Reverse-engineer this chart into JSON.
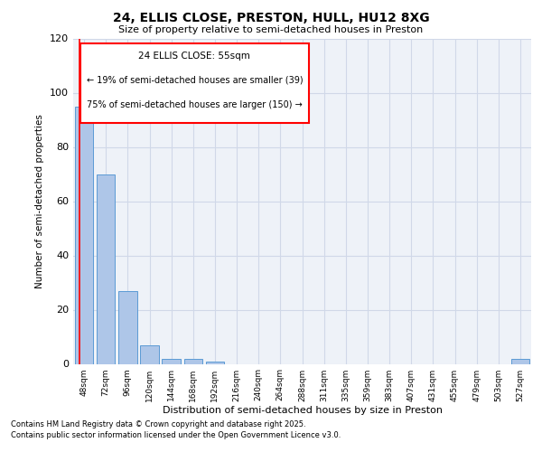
{
  "title1": "24, ELLIS CLOSE, PRESTON, HULL, HU12 8XG",
  "title2": "Size of property relative to semi-detached houses in Preston",
  "xlabel": "Distribution of semi-detached houses by size in Preston",
  "ylabel": "Number of semi-detached properties",
  "categories": [
    "48sqm",
    "72sqm",
    "96sqm",
    "120sqm",
    "144sqm",
    "168sqm",
    "192sqm",
    "216sqm",
    "240sqm",
    "264sqm",
    "288sqm",
    "311sqm",
    "335sqm",
    "359sqm",
    "383sqm",
    "407sqm",
    "431sqm",
    "455sqm",
    "479sqm",
    "503sqm",
    "527sqm"
  ],
  "values": [
    95,
    70,
    27,
    7,
    2,
    2,
    1,
    0,
    0,
    0,
    0,
    0,
    0,
    0,
    0,
    0,
    0,
    0,
    0,
    0,
    2
  ],
  "bar_color": "#aec6e8",
  "bar_edge_color": "#5b9bd5",
  "ylim": [
    0,
    120
  ],
  "yticks": [
    0,
    20,
    40,
    60,
    80,
    100,
    120
  ],
  "annotation_label": "24 ELLIS CLOSE: 55sqm",
  "annotation_smaller": "← 19% of semi-detached houses are smaller (39)",
  "annotation_larger": "75% of semi-detached houses are larger (150) →",
  "annotation_box_color": "#ff0000",
  "footnote1": "Contains HM Land Registry data © Crown copyright and database right 2025.",
  "footnote2": "Contains public sector information licensed under the Open Government Licence v3.0.",
  "grid_color": "#d0d8e8",
  "bg_color": "#eef2f8"
}
